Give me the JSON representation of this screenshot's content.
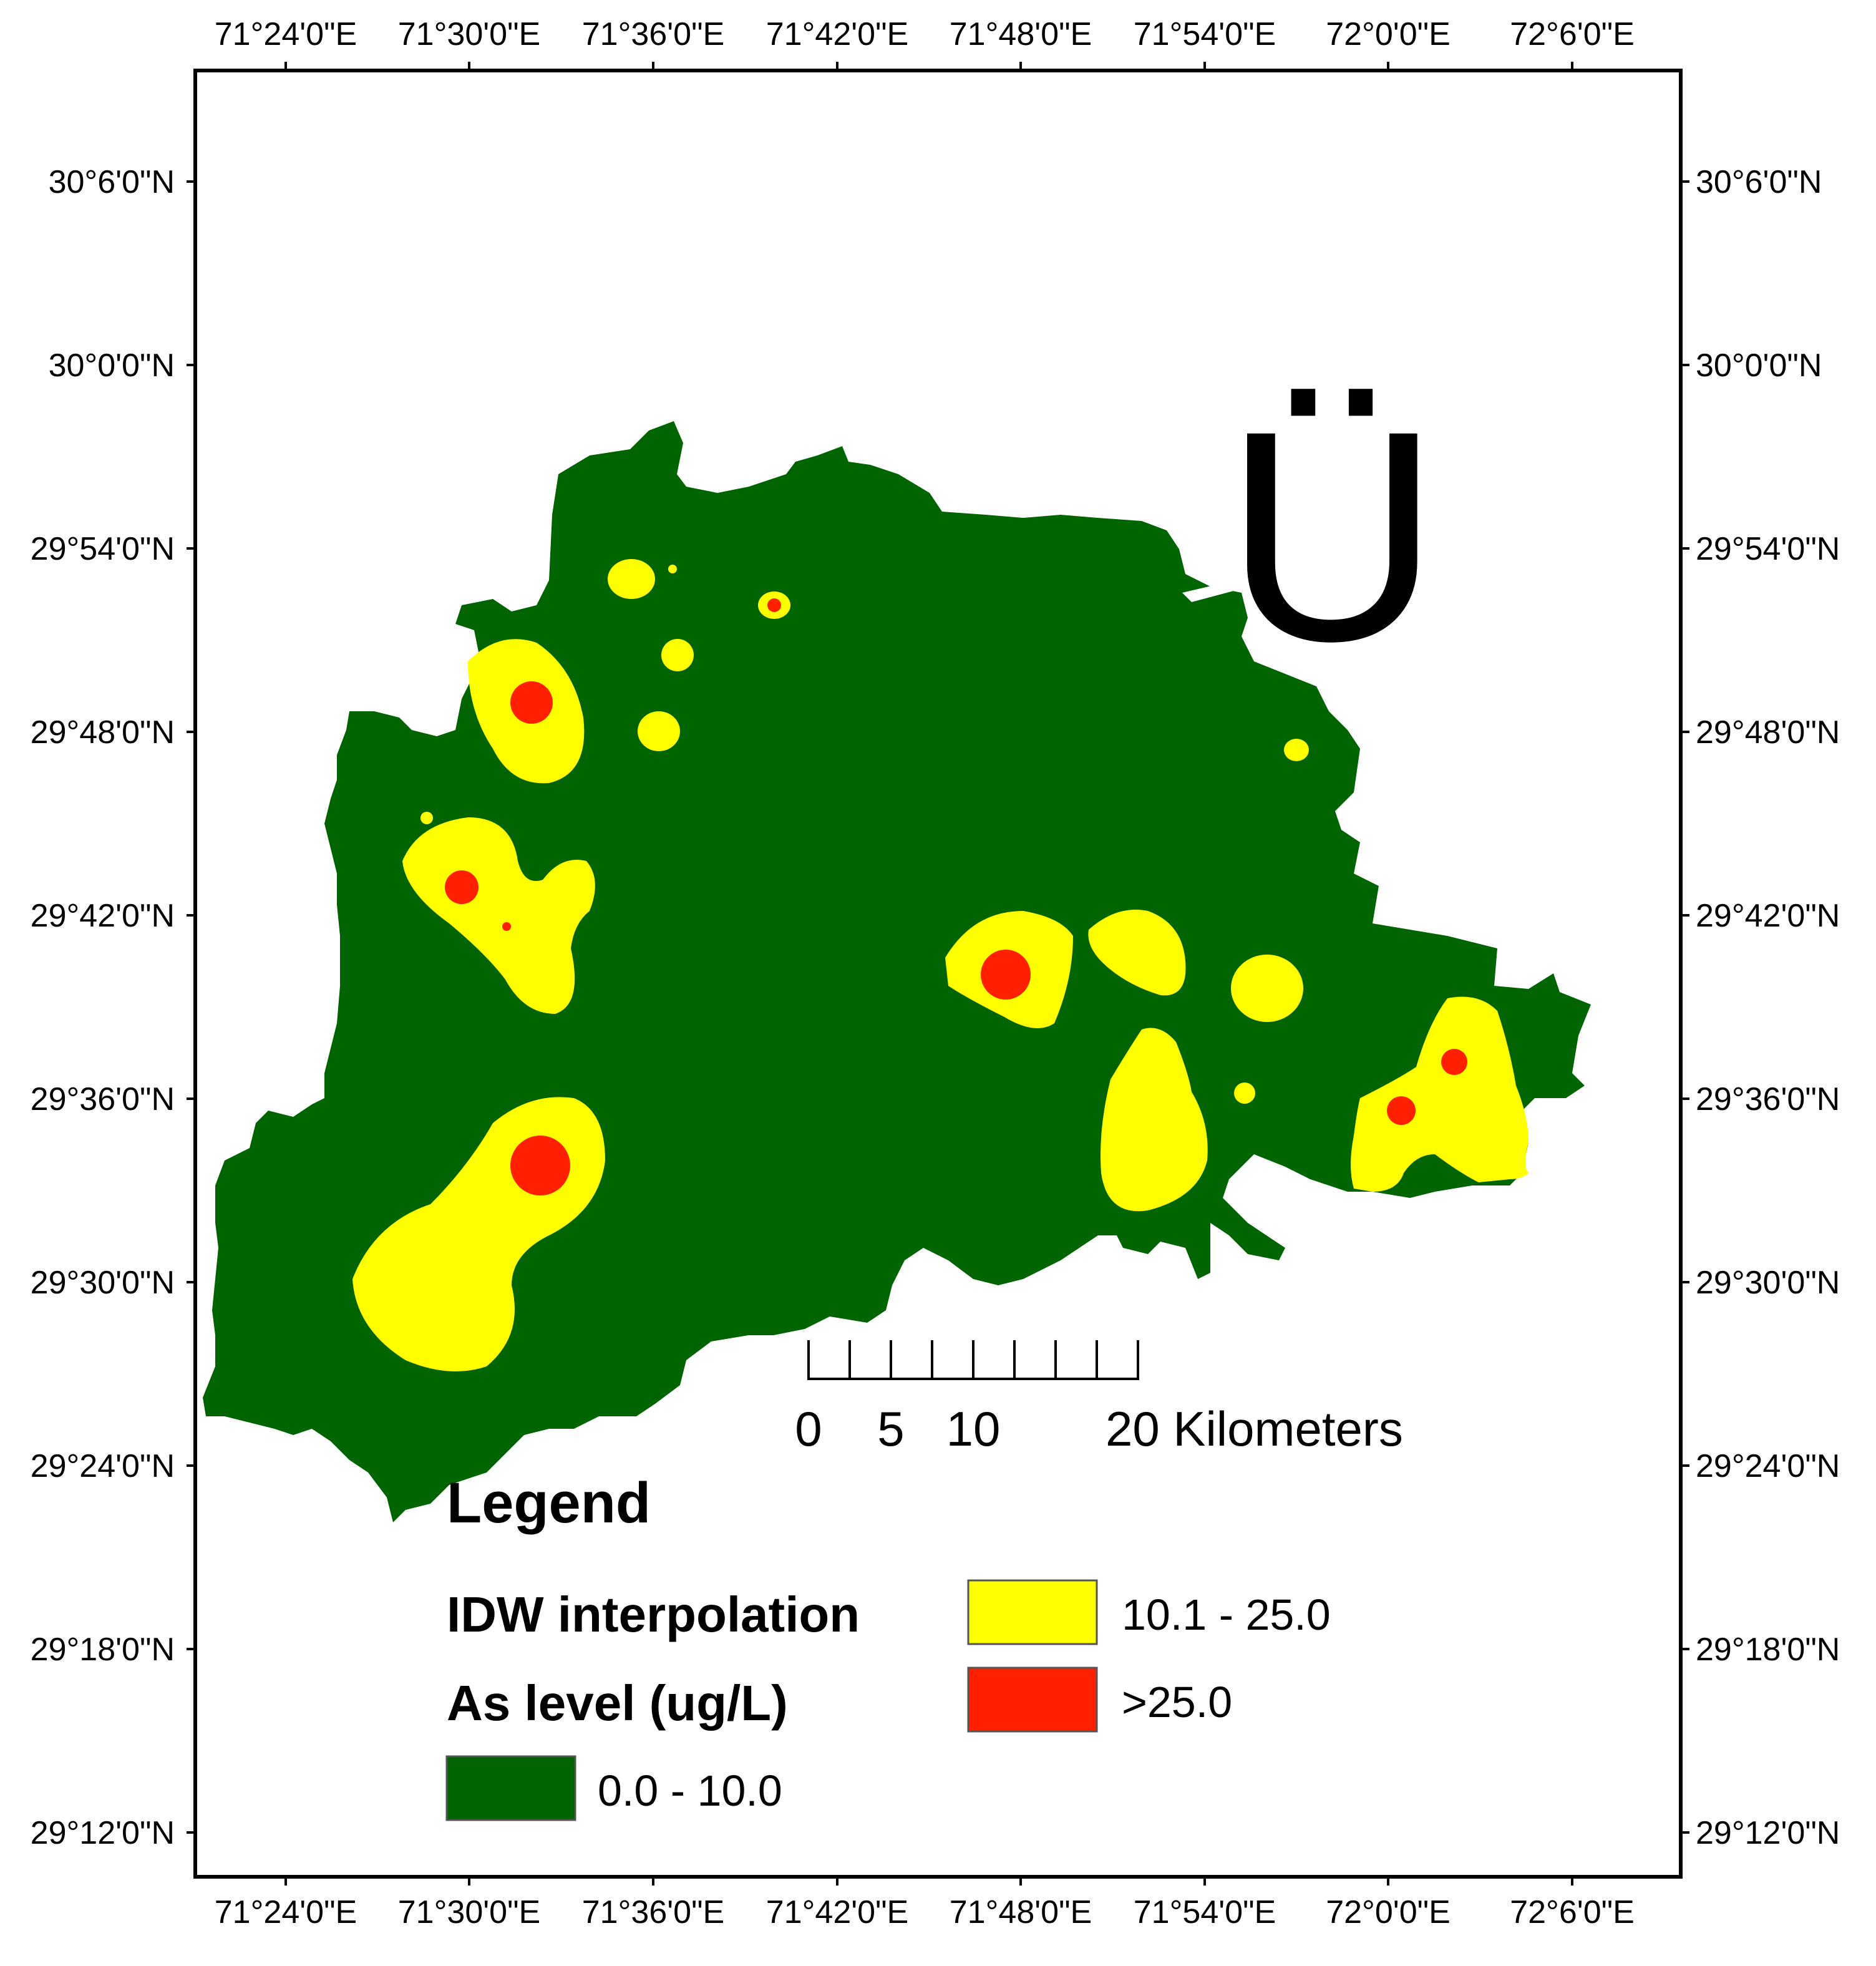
{
  "map": {
    "north_arrow_glyph": "Ü",
    "frame_color": "#000000",
    "top_ticks": [
      "71°24'0\"E",
      "71°30'0\"E",
      "71°36'0\"E",
      "71°42'0\"E",
      "71°48'0\"E",
      "71°54'0\"E",
      "72°0'0\"E",
      "72°6'0\"E"
    ],
    "bottom_ticks": [
      "71°24'0\"E",
      "71°30'0\"E",
      "71°36'0\"E",
      "71°42'0\"E",
      "71°48'0\"E",
      "71°54'0\"E",
      "72°0'0\"E",
      "72°6'0\"E"
    ],
    "left_ticks": [
      "30°6'0\"N",
      "30°0'0\"N",
      "29°54'0\"N",
      "29°48'0\"N",
      "29°42'0\"N",
      "29°36'0\"N",
      "29°30'0\"N",
      "29°24'0\"N",
      "29°18'0\"N",
      "29°12'0\"N"
    ],
    "right_ticks": [
      "30°6'0\"N",
      "30°0'0\"N",
      "29°54'0\"N",
      "29°48'0\"N",
      "29°42'0\"N",
      "29°36'0\"N",
      "29°30'0\"N",
      "29°24'0\"N",
      "29°18'0\"N",
      "29°12'0\"N"
    ],
    "scale_bar": {
      "labels": [
        "0",
        "5",
        "10",
        "20 Kilometers"
      ]
    },
    "colors": {
      "low": "#006400",
      "medium": "#ffff00",
      "high": "#ff2000"
    }
  },
  "legend": {
    "title": "Legend",
    "line1": "IDW interpolation",
    "line2": "As level (ug/L)",
    "classes": [
      {
        "label": "0.0 - 10.0",
        "color": "#006400"
      },
      {
        "label": "10.1 - 25.0",
        "color": "#ffff00"
      },
      {
        "label": ">25.0",
        "color": "#ff2000"
      }
    ]
  }
}
